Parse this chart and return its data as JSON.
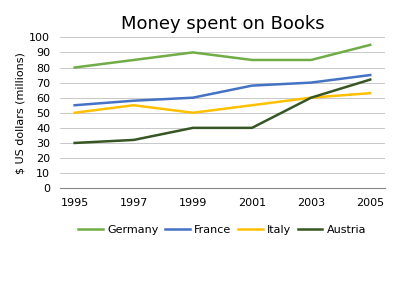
{
  "title": "Money spent on Books",
  "ylabel": "$ US dollars (millions)",
  "years": [
    1995,
    1997,
    1999,
    2001,
    2003,
    2005
  ],
  "series": {
    "Germany": [
      80,
      85,
      90,
      85,
      85,
      95
    ],
    "France": [
      55,
      58,
      60,
      68,
      70,
      75
    ],
    "Italy": [
      50,
      55,
      50,
      55,
      60,
      63
    ],
    "Austria": [
      30,
      32,
      40,
      40,
      60,
      72
    ]
  },
  "colors": {
    "Germany": "#70ad47",
    "France": "#4472c4",
    "Italy": "#ffc000",
    "Austria": "#375623"
  },
  "ylim": [
    0,
    100
  ],
  "yticks": [
    0,
    10,
    20,
    30,
    40,
    50,
    60,
    70,
    80,
    90,
    100
  ],
  "background_color": "#ffffff",
  "grid_color": "#c8c8c8",
  "title_fontsize": 13,
  "axis_label_fontsize": 8,
  "tick_fontsize": 8,
  "legend_fontsize": 8,
  "linewidth": 1.8
}
